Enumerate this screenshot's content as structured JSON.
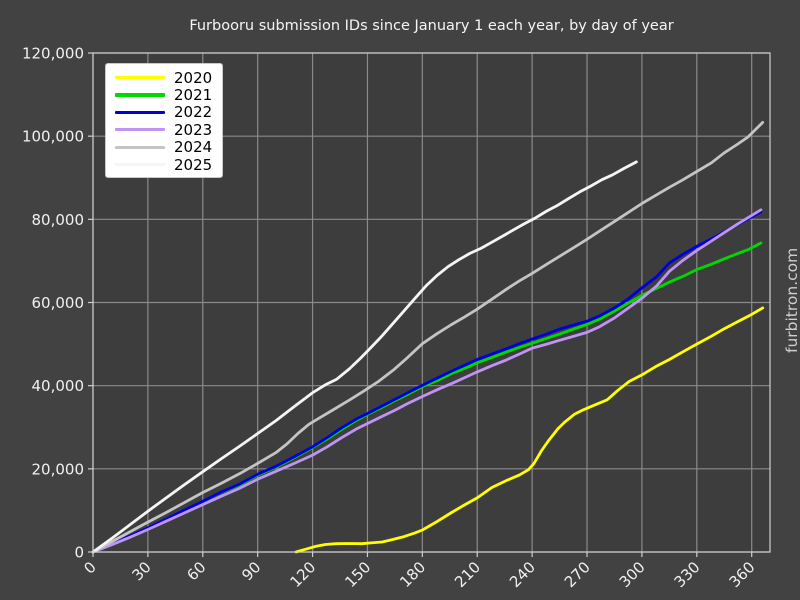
{
  "title": "Furbooru submission IDs since January 1 each year, by day of year",
  "watermark": "furbitron.com",
  "colors": {
    "figure_bg": "#424242",
    "axes_bg": "#3d3d3d",
    "grid": "#8a8a8a",
    "spine": "#cfcfcf",
    "tick": "#cfcfcf",
    "text": "#f0f0f0",
    "title_text": "#f5f5f5",
    "watermark_text": "#cfcfcf",
    "legend_bg": "#ffffff",
    "legend_text": "#000000"
  },
  "chart_data": {
    "type": "line",
    "title": "Furbooru submission IDs since January 1 each year, by day of year",
    "xlabel": "",
    "ylabel": "",
    "xlim": [
      0,
      370
    ],
    "ylim": [
      0,
      120000
    ],
    "x_ticks": [
      0,
      30,
      60,
      90,
      120,
      150,
      180,
      210,
      240,
      270,
      300,
      330,
      360
    ],
    "y_ticks": [
      0,
      20000,
      40000,
      60000,
      80000,
      100000,
      120000
    ],
    "grid": true,
    "legend_position": "upper left",
    "series": [
      {
        "name": "2020",
        "color": "#ffff00",
        "points": [
          [
            111,
            0
          ],
          [
            114,
            400
          ],
          [
            118,
            900
          ],
          [
            122,
            1400
          ],
          [
            127,
            1800
          ],
          [
            133,
            2000
          ],
          [
            140,
            2050
          ],
          [
            147,
            2000
          ],
          [
            152,
            2200
          ],
          [
            158,
            2400
          ],
          [
            163,
            2900
          ],
          [
            170,
            3700
          ],
          [
            176,
            4600
          ],
          [
            180,
            5300
          ],
          [
            188,
            7300
          ],
          [
            196,
            9500
          ],
          [
            203,
            11300
          ],
          [
            210,
            13000
          ],
          [
            218,
            15500
          ],
          [
            226,
            17200
          ],
          [
            233,
            18500
          ],
          [
            238,
            19800
          ],
          [
            241,
            21300
          ],
          [
            245,
            24300
          ],
          [
            249,
            26800
          ],
          [
            254,
            29600
          ],
          [
            258,
            31300
          ],
          [
            263,
            33100
          ],
          [
            268,
            34200
          ],
          [
            274,
            35300
          ],
          [
            281,
            36600
          ],
          [
            287,
            38900
          ],
          [
            293,
            41000
          ],
          [
            300,
            42600
          ],
          [
            308,
            44700
          ],
          [
            315,
            46300
          ],
          [
            323,
            48300
          ],
          [
            330,
            50000
          ],
          [
            338,
            51900
          ],
          [
            345,
            53700
          ],
          [
            352,
            55300
          ],
          [
            359,
            56900
          ],
          [
            366,
            58700
          ]
        ]
      },
      {
        "name": "2021",
        "color": "#00d900",
        "points": [
          [
            0,
            0
          ],
          [
            10,
            1800
          ],
          [
            20,
            3700
          ],
          [
            30,
            5700
          ],
          [
            40,
            7700
          ],
          [
            50,
            9900
          ],
          [
            60,
            12100
          ],
          [
            70,
            14300
          ],
          [
            80,
            16100
          ],
          [
            90,
            18500
          ],
          [
            100,
            20400
          ],
          [
            110,
            22700
          ],
          [
            120,
            25100
          ],
          [
            128,
            27200
          ],
          [
            136,
            29500
          ],
          [
            144,
            31700
          ],
          [
            150,
            33100
          ],
          [
            158,
            34800
          ],
          [
            165,
            36400
          ],
          [
            172,
            37900
          ],
          [
            180,
            39800
          ],
          [
            188,
            41200
          ],
          [
            196,
            42900
          ],
          [
            204,
            44300
          ],
          [
            210,
            45500
          ],
          [
            218,
            46800
          ],
          [
            226,
            48100
          ],
          [
            233,
            49200
          ],
          [
            240,
            50200
          ],
          [
            248,
            51400
          ],
          [
            255,
            52400
          ],
          [
            262,
            53500
          ],
          [
            270,
            54700
          ],
          [
            277,
            56000
          ],
          [
            285,
            57900
          ],
          [
            292,
            59700
          ],
          [
            300,
            61700
          ],
          [
            308,
            63400
          ],
          [
            315,
            64900
          ],
          [
            322,
            66200
          ],
          [
            330,
            67900
          ],
          [
            338,
            69200
          ],
          [
            345,
            70500
          ],
          [
            352,
            71700
          ],
          [
            358,
            72700
          ],
          [
            365,
            74300
          ]
        ]
      },
      {
        "name": "2022",
        "color": "#0000dd",
        "points": [
          [
            0,
            0
          ],
          [
            10,
            1900
          ],
          [
            20,
            3800
          ],
          [
            30,
            5800
          ],
          [
            40,
            7900
          ],
          [
            50,
            10100
          ],
          [
            60,
            12200
          ],
          [
            70,
            14400
          ],
          [
            80,
            16300
          ],
          [
            90,
            18700
          ],
          [
            100,
            20600
          ],
          [
            110,
            22900
          ],
          [
            120,
            25300
          ],
          [
            128,
            27500
          ],
          [
            136,
            29900
          ],
          [
            144,
            32000
          ],
          [
            150,
            33300
          ],
          [
            158,
            35100
          ],
          [
            165,
            36700
          ],
          [
            172,
            38300
          ],
          [
            180,
            40100
          ],
          [
            188,
            41800
          ],
          [
            196,
            43500
          ],
          [
            204,
            45100
          ],
          [
            210,
            46300
          ],
          [
            218,
            47600
          ],
          [
            226,
            48900
          ],
          [
            233,
            50100
          ],
          [
            240,
            51200
          ],
          [
            248,
            52400
          ],
          [
            255,
            53600
          ],
          [
            262,
            54500
          ],
          [
            270,
            55500
          ],
          [
            277,
            56800
          ],
          [
            285,
            58700
          ],
          [
            292,
            60700
          ],
          [
            300,
            63500
          ],
          [
            308,
            66200
          ],
          [
            315,
            69500
          ],
          [
            322,
            71500
          ],
          [
            330,
            73500
          ],
          [
            338,
            75300
          ],
          [
            345,
            77000
          ],
          [
            352,
            78700
          ],
          [
            358,
            80100
          ],
          [
            365,
            81800
          ]
        ]
      },
      {
        "name": "2023",
        "color": "#bf94f5",
        "points": [
          [
            0,
            0
          ],
          [
            10,
            1700
          ],
          [
            20,
            3500
          ],
          [
            30,
            5400
          ],
          [
            40,
            7400
          ],
          [
            50,
            9400
          ],
          [
            60,
            11400
          ],
          [
            70,
            13400
          ],
          [
            80,
            15300
          ],
          [
            90,
            17500
          ],
          [
            100,
            19400
          ],
          [
            110,
            21300
          ],
          [
            120,
            23300
          ],
          [
            128,
            25300
          ],
          [
            136,
            27500
          ],
          [
            144,
            29600
          ],
          [
            150,
            30900
          ],
          [
            158,
            32600
          ],
          [
            165,
            34100
          ],
          [
            172,
            35700
          ],
          [
            180,
            37400
          ],
          [
            188,
            39000
          ],
          [
            196,
            40500
          ],
          [
            204,
            42100
          ],
          [
            210,
            43300
          ],
          [
            218,
            44800
          ],
          [
            226,
            46200
          ],
          [
            233,
            47600
          ],
          [
            240,
            49000
          ],
          [
            248,
            50000
          ],
          [
            255,
            50900
          ],
          [
            262,
            51800
          ],
          [
            270,
            52800
          ],
          [
            277,
            54200
          ],
          [
            285,
            56300
          ],
          [
            292,
            58500
          ],
          [
            300,
            61000
          ],
          [
            308,
            64000
          ],
          [
            315,
            67500
          ],
          [
            322,
            70000
          ],
          [
            330,
            72500
          ],
          [
            338,
            74800
          ],
          [
            345,
            76800
          ],
          [
            352,
            78800
          ],
          [
            358,
            80400
          ],
          [
            365,
            82300
          ]
        ]
      },
      {
        "name": "2024",
        "color": "#c4c4c4",
        "points": [
          [
            0,
            0
          ],
          [
            10,
            2400
          ],
          [
            20,
            4800
          ],
          [
            30,
            7200
          ],
          [
            40,
            9500
          ],
          [
            50,
            11900
          ],
          [
            60,
            14300
          ],
          [
            70,
            16500
          ],
          [
            80,
            18800
          ],
          [
            90,
            21300
          ],
          [
            100,
            23900
          ],
          [
            106,
            26000
          ],
          [
            112,
            28500
          ],
          [
            118,
            30700
          ],
          [
            124,
            32300
          ],
          [
            132,
            34400
          ],
          [
            140,
            36500
          ],
          [
            148,
            38700
          ],
          [
            156,
            41000
          ],
          [
            164,
            43700
          ],
          [
            172,
            46800
          ],
          [
            180,
            50100
          ],
          [
            188,
            52500
          ],
          [
            196,
            54700
          ],
          [
            203,
            56500
          ],
          [
            210,
            58400
          ],
          [
            218,
            60800
          ],
          [
            226,
            63200
          ],
          [
            233,
            65200
          ],
          [
            240,
            67000
          ],
          [
            248,
            69200
          ],
          [
            255,
            71100
          ],
          [
            262,
            73000
          ],
          [
            270,
            75200
          ],
          [
            278,
            77500
          ],
          [
            285,
            79500
          ],
          [
            292,
            81500
          ],
          [
            300,
            83800
          ],
          [
            308,
            85900
          ],
          [
            315,
            87700
          ],
          [
            322,
            89400
          ],
          [
            330,
            91500
          ],
          [
            338,
            93600
          ],
          [
            345,
            96000
          ],
          [
            352,
            98000
          ],
          [
            358,
            99800
          ],
          [
            366,
            103300
          ]
        ]
      },
      {
        "name": "2025",
        "color": "#f5f5f5",
        "points": [
          [
            0,
            0
          ],
          [
            10,
            3200
          ],
          [
            20,
            6500
          ],
          [
            30,
            9800
          ],
          [
            40,
            13000
          ],
          [
            50,
            16200
          ],
          [
            60,
            19300
          ],
          [
            70,
            22400
          ],
          [
            80,
            25400
          ],
          [
            90,
            28500
          ],
          [
            100,
            31600
          ],
          [
            110,
            35000
          ],
          [
            120,
            38300
          ],
          [
            127,
            40200
          ],
          [
            133,
            41500
          ],
          [
            140,
            44000
          ],
          [
            146,
            46500
          ],
          [
            152,
            49200
          ],
          [
            158,
            52000
          ],
          [
            164,
            55000
          ],
          [
            170,
            58000
          ],
          [
            176,
            61000
          ],
          [
            182,
            64000
          ],
          [
            188,
            66500
          ],
          [
            194,
            68600
          ],
          [
            200,
            70300
          ],
          [
            206,
            71800
          ],
          [
            212,
            73000
          ],
          [
            218,
            74500
          ],
          [
            224,
            76000
          ],
          [
            230,
            77500
          ],
          [
            236,
            79000
          ],
          [
            242,
            80400
          ],
          [
            248,
            82000
          ],
          [
            254,
            83400
          ],
          [
            260,
            85000
          ],
          [
            266,
            86600
          ],
          [
            272,
            88000
          ],
          [
            278,
            89500
          ],
          [
            284,
            90700
          ],
          [
            290,
            92200
          ],
          [
            297,
            93800
          ]
        ]
      }
    ]
  }
}
